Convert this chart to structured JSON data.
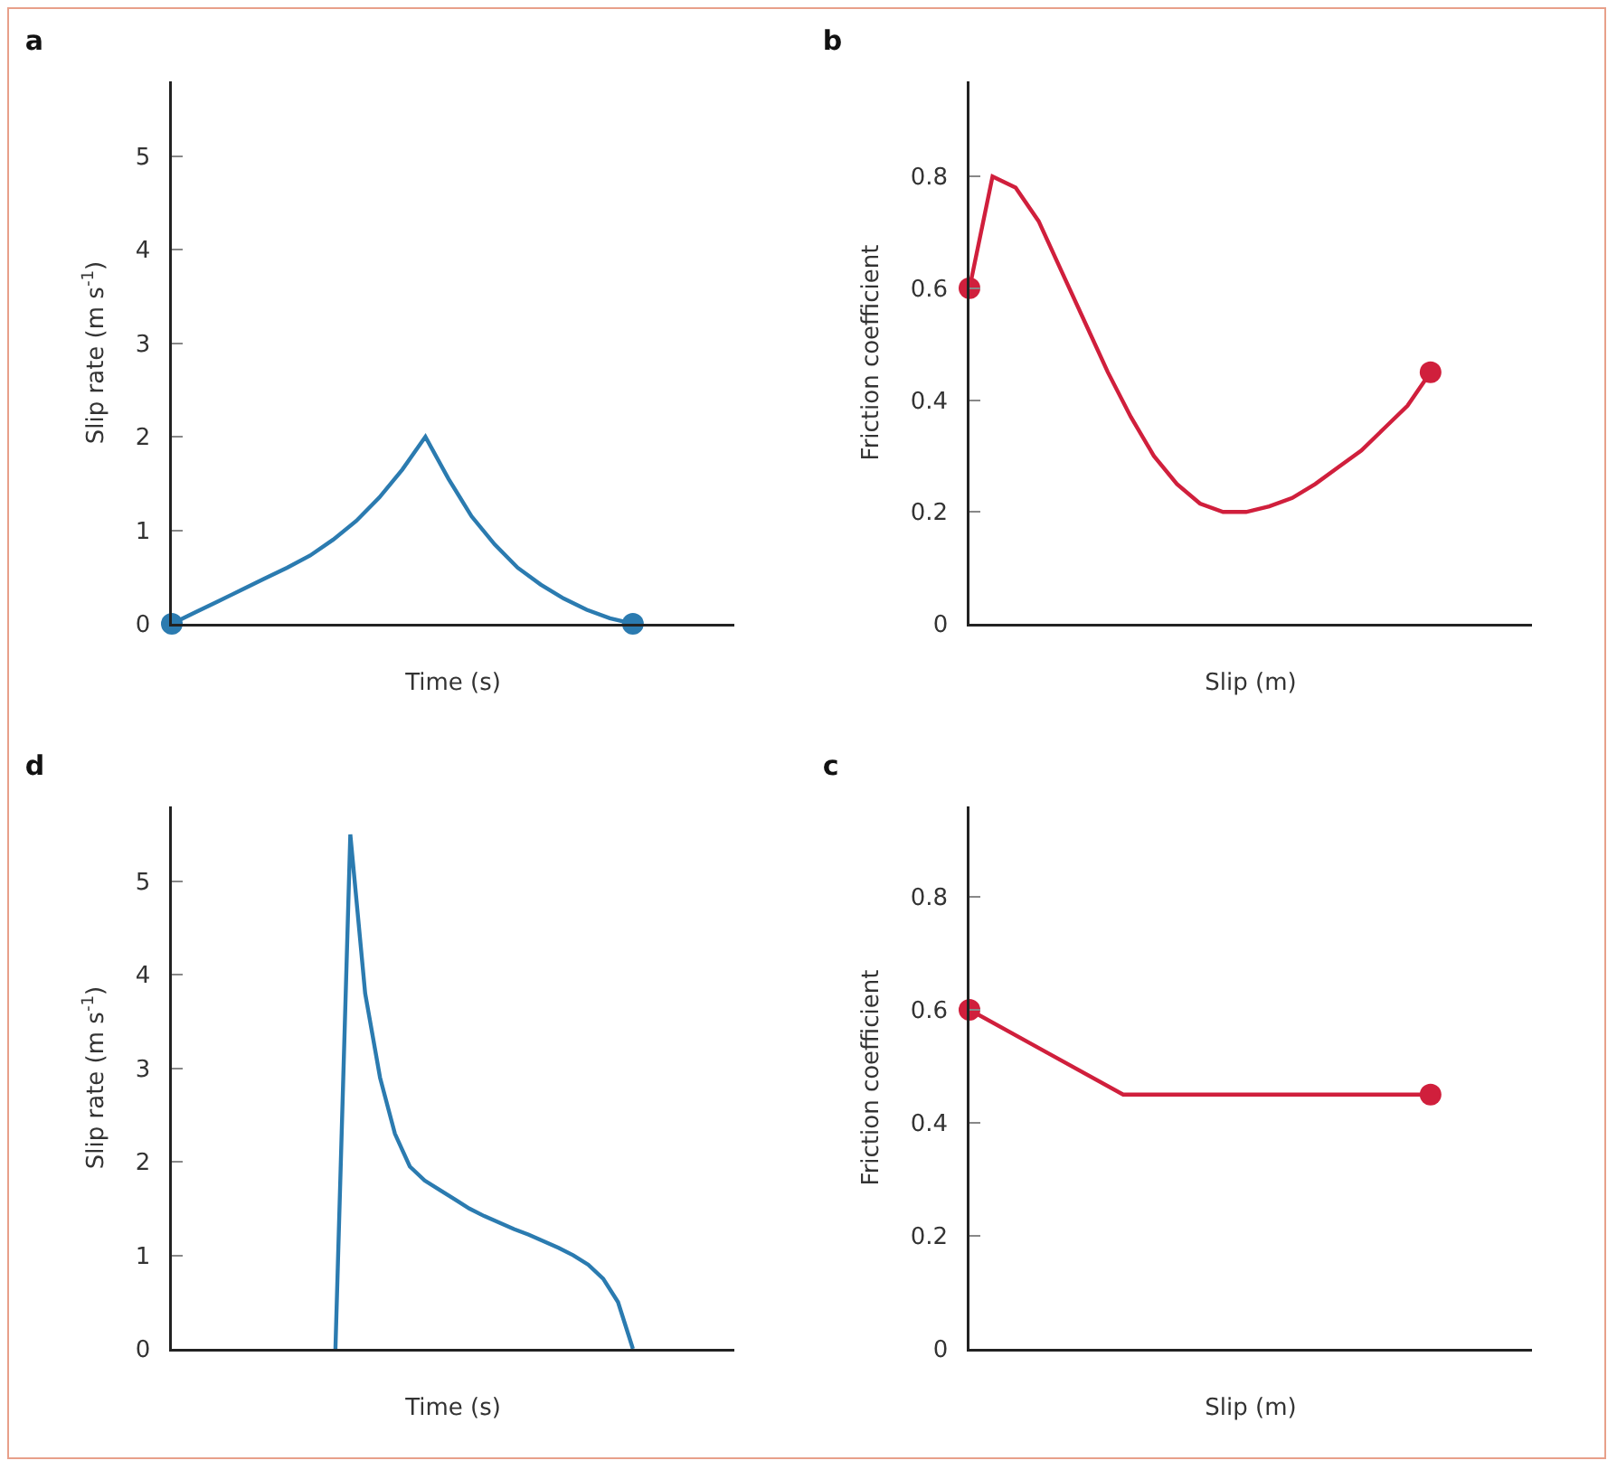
{
  "chart_data": [
    {
      "type": "line",
      "title": "a",
      "xlabel": "Time (s)",
      "ylabel": "Slip rate (m s$^{-1}$)",
      "categories": [
        null,
        null,
        null,
        null,
        null,
        null,
        null,
        null,
        null,
        null,
        null,
        null,
        null,
        null,
        null,
        null,
        null,
        null,
        null,
        null,
        null
      ],
      "ylim": [
        0,
        5.8
      ],
      "yticks": [
        0,
        1,
        2,
        3,
        4,
        5
      ],
      "tick_labels": "y",
      "grid": false,
      "series": [
        {
          "type": "line",
          "color": "#2b7bb0",
          "marker": "none",
          "line_style": "solid",
          "values": [
            0,
            0.12,
            0.24,
            0.36,
            0.48,
            0.6,
            0.73,
            0.9,
            1.1,
            1.35,
            1.65,
            2.0,
            1.55,
            1.15,
            0.85,
            0.6,
            0.42,
            0.27,
            0.15,
            0.06,
            0
          ]
        },
        {
          "type": "scatter",
          "color": "#2b7bb0",
          "marker": "circle",
          "values": [
            0,
            null,
            null,
            null,
            null,
            null,
            null,
            null,
            null,
            null,
            null,
            null,
            null,
            null,
            null,
            null,
            null,
            null,
            null,
            null,
            0
          ]
        }
      ]
    },
    {
      "type": "line",
      "title": "b",
      "xlabel": "Slip (m)",
      "ylabel": "Friction coefficient",
      "categories": [
        null,
        null,
        null,
        null,
        null,
        null,
        null,
        null,
        null,
        null,
        null,
        null,
        null,
        null,
        null,
        null,
        null,
        null,
        null,
        null,
        null
      ],
      "ylim": [
        0,
        0.97
      ],
      "yticks": [
        0,
        0.2,
        0.4,
        0.6,
        0.8
      ],
      "tick_labels": "y",
      "grid": false,
      "series": [
        {
          "type": "line",
          "color": "#d01f3c",
          "marker": "none",
          "line_style": "solid",
          "values": [
            0.6,
            0.8,
            0.78,
            0.72,
            0.63,
            0.54,
            0.45,
            0.37,
            0.3,
            0.25,
            0.215,
            0.2,
            0.2,
            0.21,
            0.225,
            0.25,
            0.28,
            0.31,
            0.35,
            0.39,
            0.45
          ]
        },
        {
          "type": "scatter",
          "color": "#d01f3c",
          "marker": "circle",
          "values": [
            0.6,
            null,
            null,
            null,
            null,
            null,
            null,
            null,
            null,
            null,
            null,
            null,
            null,
            null,
            null,
            null,
            null,
            null,
            null,
            null,
            0.45
          ]
        }
      ]
    },
    {
      "type": "line",
      "title": "d",
      "xlabel": "Time (s)",
      "ylabel": "Slip rate (m s$^{-1}$)",
      "categories": [
        null,
        null,
        null,
        null,
        null,
        null,
        null,
        null,
        null,
        null,
        null,
        null,
        null,
        null,
        null,
        null,
        null,
        null,
        null,
        null,
        null,
        null,
        null,
        null,
        null,
        null,
        null,
        null,
        null,
        null,
        null,
        null
      ],
      "ylim": [
        0,
        5.8
      ],
      "yticks": [
        0,
        1,
        2,
        3,
        4,
        5
      ],
      "tick_labels": "y",
      "grid": false,
      "series": [
        {
          "type": "line",
          "color": "#2b7bb0",
          "marker": "none",
          "line_style": "solid",
          "values": [
            null,
            null,
            null,
            null,
            null,
            null,
            null,
            null,
            null,
            null,
            null,
            0,
            5.5,
            3.8,
            2.9,
            2.3,
            1.95,
            1.8,
            1.7,
            1.6,
            1.5,
            1.42,
            1.35,
            1.28,
            1.22,
            1.15,
            1.08,
            1.0,
            0.9,
            0.75,
            0.5,
            0
          ]
        }
      ]
    },
    {
      "type": "line",
      "title": "c",
      "xlabel": "Slip (m)",
      "ylabel": "Friction coefficient",
      "categories": [
        null,
        null,
        null,
        null,
        null,
        null,
        null
      ],
      "ylim": [
        0,
        0.96
      ],
      "yticks": [
        0,
        0.2,
        0.4,
        0.6,
        0.8
      ],
      "tick_labels": "y",
      "grid": false,
      "series": [
        {
          "type": "line",
          "color": "#d01f3c",
          "marker": "none",
          "line_style": "solid",
          "values": [
            0.6,
            0.525,
            0.45,
            0.45,
            0.45,
            0.45,
            0.45
          ]
        },
        {
          "type": "scatter",
          "color": "#d01f3c",
          "marker": "circle",
          "values": [
            0.6,
            null,
            null,
            null,
            null,
            null,
            0.45
          ]
        }
      ]
    }
  ]
}
